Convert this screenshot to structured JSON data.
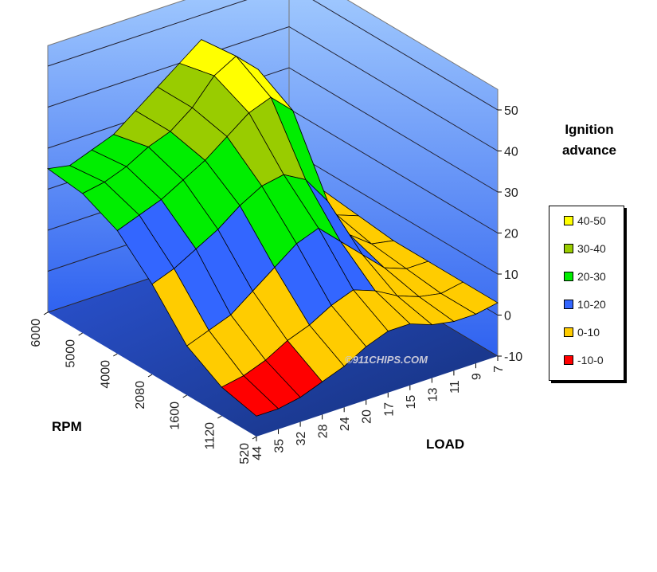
{
  "chart_data": {
    "type": "surface",
    "title": "",
    "xlabel": "RPM",
    "ylabel": "LOAD",
    "zlabel": "Ignition advance",
    "rpm_ticks": [
      "520",
      "1120",
      "1600",
      "2080",
      "4000",
      "5000",
      "6000"
    ],
    "load_ticks": [
      "44",
      "35",
      "32",
      "28",
      "24",
      "20",
      "17",
      "15",
      "13",
      "11",
      "9",
      "7"
    ],
    "z_ticks": [
      "-10",
      "0",
      "10",
      "20",
      "30",
      "40",
      "50"
    ],
    "zlim": [
      -10,
      50
    ],
    "z": [
      [
        -5,
        -5,
        -4,
        -2,
        0,
        3,
        5,
        5,
        3,
        2,
        2,
        3
      ],
      [
        -3,
        -2,
        0,
        3,
        5,
        8,
        10,
        8,
        5,
        3,
        2,
        3
      ],
      [
        2,
        4,
        6,
        10,
        14,
        18,
        20,
        15,
        10,
        5,
        3,
        3
      ],
      [
        12,
        14,
        17,
        20,
        24,
        27,
        28,
        25,
        18,
        8,
        4,
        3
      ],
      [
        20,
        22,
        24,
        27,
        30,
        34,
        38,
        40,
        35,
        15,
        6,
        4
      ],
      [
        24,
        25,
        27,
        30,
        32,
        36,
        42,
        45,
        40,
        20,
        8,
        5
      ],
      [
        25,
        24,
        26,
        28,
        32,
        36,
        40,
        44,
        38,
        18,
        7,
        5
      ]
    ],
    "legend": [
      {
        "label": "40-50",
        "color": "#ffff00"
      },
      {
        "label": "30-40",
        "color": "#99cc00"
      },
      {
        "label": "20-30",
        "color": "#00ee00"
      },
      {
        "label": "10-20",
        "color": "#3366ff"
      },
      {
        "label": "0-10",
        "color": "#ffcc00"
      },
      {
        "label": "-10-0",
        "color": "#ff0000"
      }
    ],
    "watermark": "©911CHIPS.COM"
  }
}
